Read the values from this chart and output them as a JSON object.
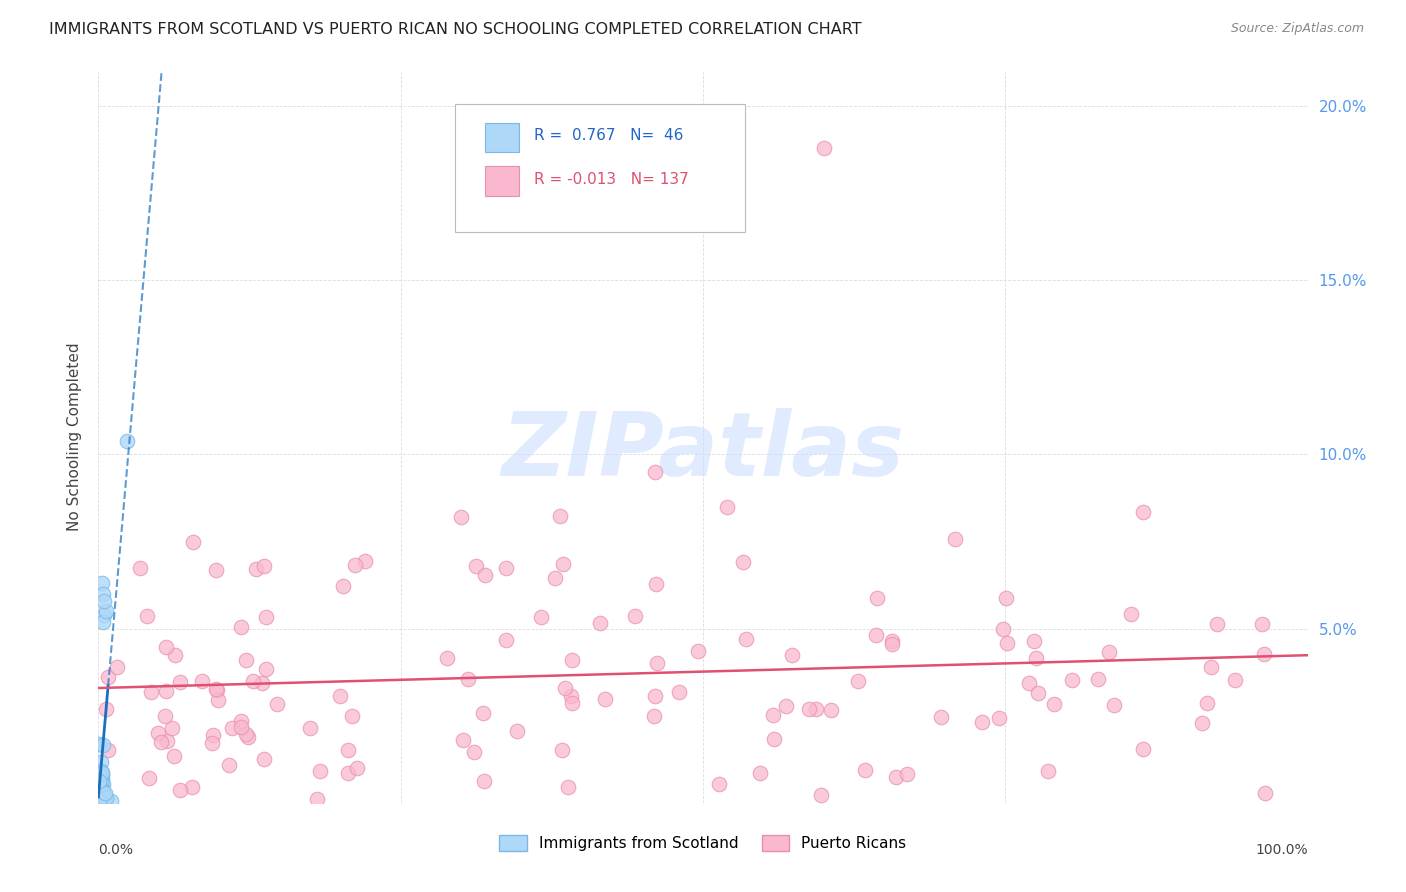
{
  "title": "IMMIGRANTS FROM SCOTLAND VS PUERTO RICAN NO SCHOOLING COMPLETED CORRELATION CHART",
  "source": "Source: ZipAtlas.com",
  "ylabel": "No Schooling Completed",
  "xlim": [
    0.0,
    1.0
  ],
  "ylim": [
    0.0,
    0.21
  ],
  "scotland_R": 0.767,
  "scotland_N": 46,
  "pr_R": -0.013,
  "pr_N": 137,
  "scotland_color": "#ADD8F7",
  "pr_color": "#F9B8CF",
  "scotland_edge_color": "#7BB8E8",
  "pr_edge_color": "#E890AA",
  "scotland_line_color": "#1A6FBF",
  "pr_line_color": "#E05070",
  "right_axis_color": "#5599EE",
  "legend_label_scotland": "Immigrants from Scotland",
  "legend_label_pr": "Puerto Ricans",
  "watermark": "ZIPatlas",
  "background_color": "#FFFFFF",
  "grid_color": "#DDDDDD",
  "title_color": "#222222",
  "source_color": "#888888"
}
